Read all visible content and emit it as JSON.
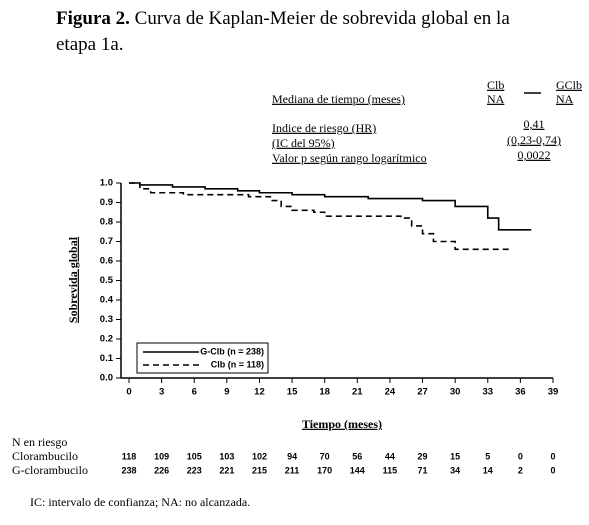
{
  "chart_data": {
    "type": "step",
    "title_label": "Figura 2.",
    "title": "Curva de Kaplan-Meier de sobrevida global en la etapa 1a.",
    "summary": {
      "median_label": "Mediana de tiempo (meses)",
      "columns": [
        {
          "name": "Clb",
          "median": "NA"
        },
        {
          "name": "GClb",
          "median": "NA"
        }
      ],
      "hr_label": "Indice de riesgo (HR)",
      "ci_label": "(IC del 95%)",
      "p_label": "Valor p según rango logarítmico",
      "hr": "0,41",
      "ci": "(0,23-0,74)",
      "p": "0,0022"
    },
    "x_label": "Tiempo (meses)",
    "y_label": "Sobrevida global",
    "xlim": [
      0,
      39
    ],
    "xticks": [
      0,
      3,
      6,
      9,
      12,
      15,
      18,
      21,
      24,
      27,
      30,
      33,
      36,
      39
    ],
    "ylim": [
      0,
      1
    ],
    "yticks": [
      {
        "value": 0,
        "label": "0.0"
      },
      0.1,
      0.2,
      0.3,
      0.4,
      0.5,
      0.6,
      0.7,
      0.8,
      0.9,
      {
        "value": 1,
        "label": "1.0"
      }
    ],
    "legend": "lower left",
    "series": [
      {
        "name": "G-Clb (n = 238)",
        "color": "#000000",
        "dashed": false,
        "x": [
          0,
          1,
          4,
          7,
          10,
          12,
          15,
          18,
          22,
          27,
          30,
          33,
          34,
          37
        ],
        "values": [
          1.0,
          0.99,
          0.98,
          0.97,
          0.96,
          0.95,
          0.94,
          0.93,
          0.92,
          0.91,
          0.88,
          0.82,
          0.76,
          0.76
        ]
      },
      {
        "name": "Clb (n = 118)",
        "color": "#000000",
        "dashed": true,
        "x": [
          0,
          1,
          2,
          5,
          11,
          13,
          14,
          15,
          17,
          18,
          25,
          26,
          27,
          28,
          30,
          35
        ],
        "values": [
          1.0,
          0.97,
          0.95,
          0.94,
          0.93,
          0.91,
          0.88,
          0.86,
          0.85,
          0.83,
          0.82,
          0.78,
          0.74,
          0.7,
          0.66,
          0.66
        ]
      }
    ],
    "risk_table": {
      "title": "N en riesgo",
      "rows": [
        {
          "name": "Clorambucilo",
          "values": [
            118,
            109,
            105,
            103,
            102,
            94,
            70,
            56,
            44,
            29,
            15,
            5,
            0,
            0
          ]
        },
        {
          "name": "G-clorambucilo",
          "values": [
            238,
            226,
            223,
            221,
            215,
            211,
            170,
            144,
            115,
            71,
            34,
            14,
            2,
            0
          ]
        }
      ]
    },
    "footnote": "IC: intervalo de confianza; NA: no alcanzada."
  }
}
